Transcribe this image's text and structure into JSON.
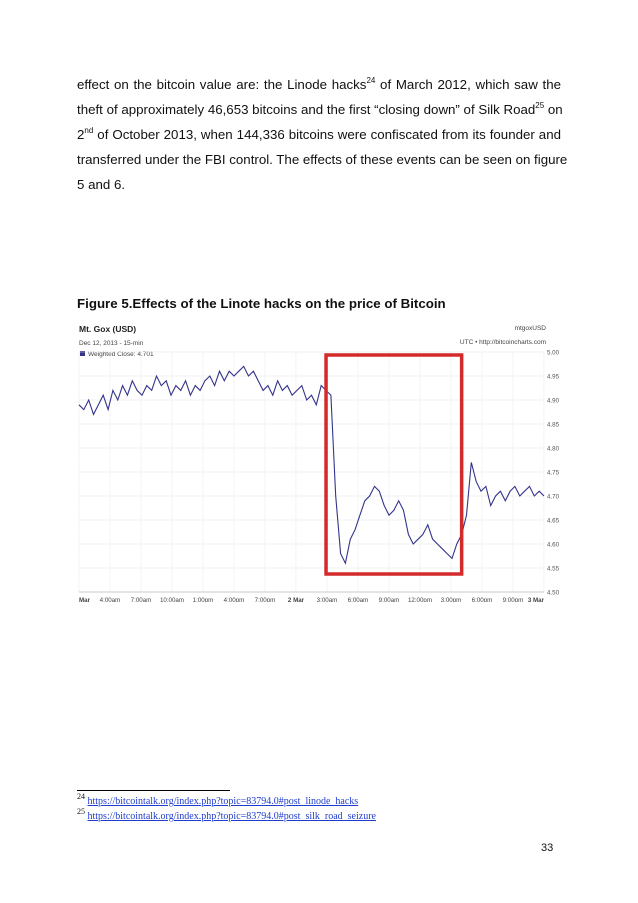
{
  "paragraph": {
    "l1_a": "effect on the bitcoin value are: the Linode hacks",
    "l1_sup": "24",
    "l1_b": " of March 2012, which saw the",
    "l2_a": "theft of approximately 46,653 bitcoins and the first “closing down” of Silk Road",
    "l2_sup": "25",
    "l2_b": " on",
    "l3_a": "2",
    "l3_sup": "nd",
    "l3_b": " of October 2013, when 144,336 bitcoins were confiscated from its founder and",
    "l4": "transferred under the FBI control. The effects of these events can be seen on figure",
    "l5": "5 and 6."
  },
  "figure": {
    "title": "Figure 5.Effects of the Linote hacks on the price of Bitcoin"
  },
  "chart_data": {
    "type": "line",
    "title": "Mt. Gox (USD)",
    "subtitle": "Dec 12, 2013 - 15-min",
    "legend": "Weighted Close: 4.701",
    "legend_position": "top-left",
    "top_right_label": "mtgoxUSD",
    "source_label": "UTC • http://bitcoincharts.com",
    "x_tick_labels": [
      "Mar",
      "4:00am",
      "7:00am",
      "10:00am",
      "1:00pm",
      "4:00pm",
      "7:00pm",
      "2 Mar",
      "3:00am",
      "6:00am",
      "9:00am",
      "12:00pm",
      "3:00pm",
      "6:00pm",
      "9:00pm",
      "3 Mar"
    ],
    "y_tick_labels": [
      "5.00",
      "4.95",
      "4.90",
      "4.85",
      "4.80",
      "4.75",
      "4.70",
      "4.65",
      "4.60",
      "4.55",
      "4.50"
    ],
    "ylim": [
      4.5,
      5.0
    ],
    "grid": true,
    "line_color": "#33348a",
    "highlight_color": "#d42a2a",
    "highlight_range_hours": [
      25.5,
      39.5
    ],
    "series": [
      {
        "x": [
          0,
          0.5,
          1,
          1.5,
          2,
          2.5,
          3,
          3.5,
          4,
          4.5,
          5,
          5.5,
          6,
          6.5,
          7,
          7.5,
          8,
          8.5,
          9,
          9.5,
          10,
          10.5,
          11,
          11.5,
          12,
          12.5,
          13,
          13.5,
          14,
          14.5,
          15,
          15.5,
          16,
          16.5,
          17,
          17.5,
          18,
          18.5,
          19,
          19.5,
          20,
          20.5,
          21,
          21.5,
          22,
          22.5,
          23,
          23.5,
          24,
          24.5,
          25,
          25.5,
          26,
          26.5,
          27,
          27.5,
          28,
          28.5,
          29,
          29.5,
          30,
          30.5,
          31,
          31.5,
          32,
          32.5,
          33,
          33.5,
          34,
          34.5,
          35,
          35.5,
          36,
          36.5,
          37,
          37.5,
          38,
          38.5,
          39,
          39.5,
          40,
          40.5,
          41,
          41.5,
          42,
          42.5,
          43,
          43.5,
          44,
          44.5,
          45,
          45.5,
          46,
          46.5,
          47,
          47.5,
          48
        ],
        "values": [
          4.89,
          4.88,
          4.9,
          4.87,
          4.89,
          4.91,
          4.88,
          4.92,
          4.9,
          4.93,
          4.91,
          4.94,
          4.92,
          4.91,
          4.93,
          4.92,
          4.95,
          4.93,
          4.94,
          4.91,
          4.93,
          4.92,
          4.94,
          4.91,
          4.93,
          4.92,
          4.94,
          4.95,
          4.93,
          4.96,
          4.94,
          4.96,
          4.95,
          4.96,
          4.97,
          4.95,
          4.96,
          4.94,
          4.92,
          4.93,
          4.91,
          4.94,
          4.92,
          4.93,
          4.91,
          4.92,
          4.93,
          4.9,
          4.91,
          4.89,
          4.93,
          4.92,
          4.91,
          4.7,
          4.58,
          4.56,
          4.61,
          4.63,
          4.66,
          4.69,
          4.7,
          4.72,
          4.71,
          4.68,
          4.66,
          4.67,
          4.69,
          4.67,
          4.62,
          4.6,
          4.61,
          4.62,
          4.64,
          4.61,
          4.6,
          4.59,
          4.58,
          4.57,
          4.6,
          4.62,
          4.66,
          4.77,
          4.73,
          4.71,
          4.72,
          4.68,
          4.7,
          4.71,
          4.69,
          4.71,
          4.72,
          4.7,
          4.71,
          4.72,
          4.7,
          4.71,
          4.7
        ]
      }
    ]
  },
  "footnotes": [
    {
      "num": "24",
      "link": "https://bitcointalk.org/index.php?topic=83794.0#post_linode_hacks"
    },
    {
      "num": "25",
      "link": "https://bitcointalk.org/index.php?topic=83794.0#post_silk_road_seizure"
    }
  ],
  "page_number": "33"
}
